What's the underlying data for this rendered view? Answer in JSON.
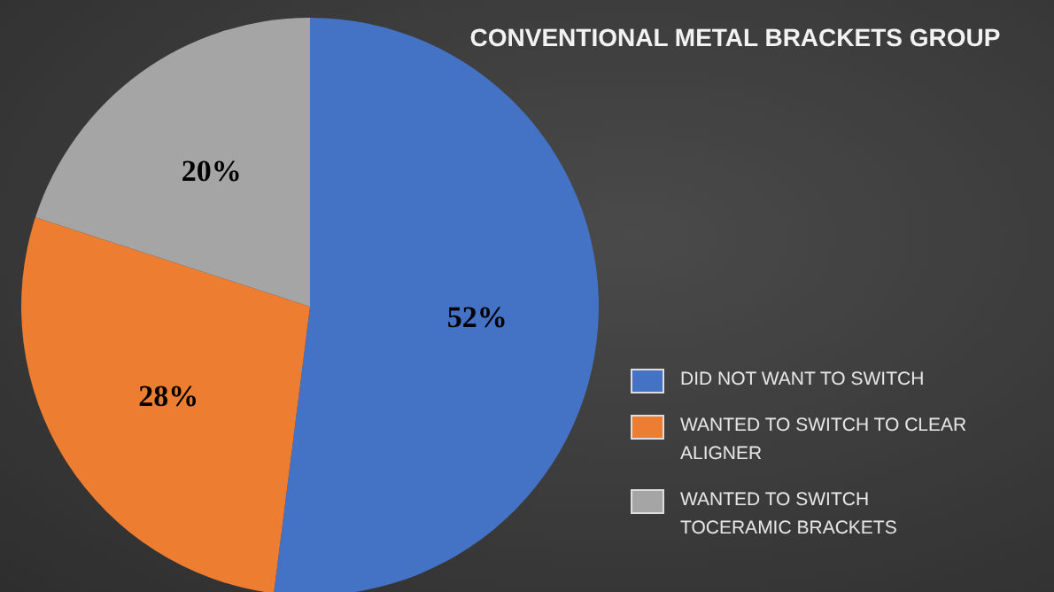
{
  "chart_data": {
    "type": "pie",
    "title": "CONVENTIONAL METAL BRACKETS GROUP",
    "categories": [
      "DID NOT WANT TO SWITCH",
      "WANTED TO SWITCH TO CLEAR ALIGNER",
      "WANTED TO SWITCH TOCERAMIC BRACKETS"
    ],
    "values": [
      52,
      28,
      20
    ],
    "colors": [
      "#4472c4",
      "#ed7d31",
      "#a5a5a5"
    ],
    "value_labels": [
      "52%",
      "28%",
      "20%"
    ],
    "legend": "right"
  }
}
